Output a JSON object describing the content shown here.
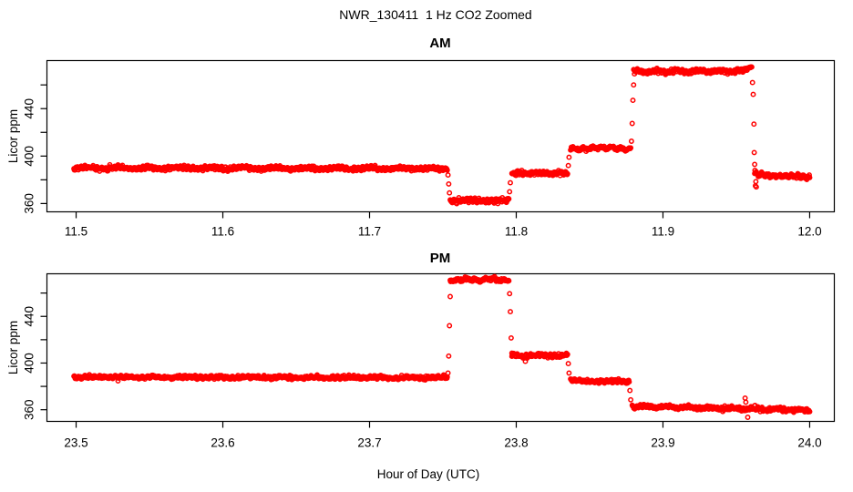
{
  "header": {
    "title": "NWR_130411  1 Hz CO2 Zoomed"
  },
  "axes": {
    "xlabel": "Hour of Day (UTC)",
    "ylabel": "Licor ppm"
  },
  "colors": {
    "points": "#FF0000",
    "axis": "#000000",
    "background": "#FFFFFF"
  },
  "marker": {
    "shape": "open-circle",
    "radius": 2.2,
    "stroke_width": 1.5
  },
  "chart_data": [
    {
      "type": "scatter",
      "panel": "AM",
      "title": "AM",
      "ylabel": "Licor ppm",
      "xlim": [
        11.4801,
        12.0168
      ],
      "ylim": [
        353,
        480.5
      ],
      "xticks": [
        11.5,
        11.6,
        11.7,
        11.8,
        11.9,
        12.0
      ],
      "xtick_labels": [
        "11.5",
        "11.6",
        "11.7",
        "11.8",
        "11.9",
        "12.0"
      ],
      "yticks_major": [
        360,
        400,
        440
      ],
      "ytick_labels_major": [
        "360",
        "400",
        "440"
      ],
      "yticks_minor": [
        380,
        420,
        460
      ],
      "grid": false,
      "sample_rate_hz": 1,
      "segments": [
        {
          "t0": 11.4985,
          "t1": 11.753,
          "v0": 390.0,
          "v1": 389.5
        },
        {
          "t0": 11.755,
          "t1": 11.795,
          "v0": 362.5,
          "v1": 362.5
        },
        {
          "t0": 11.797,
          "t1": 11.835,
          "v0": 385.5,
          "v1": 385.5
        },
        {
          "t0": 11.837,
          "t1": 11.878,
          "v0": 406.5,
          "v1": 406.5
        },
        {
          "t0": 11.88,
          "t1": 11.955,
          "v0": 471.5,
          "v1": 471.5
        },
        {
          "t0": 11.955,
          "t1": 11.9605,
          "v0": 472.0,
          "v1": 475.0
        },
        {
          "t0": 11.9625,
          "t1": 12.0,
          "v0": 384.5,
          "v1": 382.0
        }
      ],
      "transition_points": [
        [
          11.7535,
          384.0
        ],
        [
          11.754,
          376.5
        ],
        [
          11.7545,
          369.0
        ],
        [
          11.7955,
          370.0
        ],
        [
          11.796,
          377.5
        ],
        [
          11.8355,
          392.0
        ],
        [
          11.836,
          399.0
        ],
        [
          11.8785,
          412.5
        ],
        [
          11.879,
          427.5
        ],
        [
          11.8795,
          447.0
        ],
        [
          11.88,
          460.0
        ],
        [
          11.961,
          462.0
        ],
        [
          11.9615,
          452.0
        ],
        [
          11.962,
          427.0
        ],
        [
          11.9622,
          403.0
        ],
        [
          11.9625,
          393.0
        ],
        [
          11.9627,
          388.0
        ],
        [
          11.963,
          375.0
        ],
        [
          11.9633,
          378.5
        ],
        [
          11.9636,
          374.0
        ]
      ]
    },
    {
      "type": "scatter",
      "panel": "PM",
      "title": "PM",
      "ylabel": "Licor ppm",
      "xlim": [
        23.4801,
        24.0168
      ],
      "ylim": [
        350,
        476.5
      ],
      "xticks": [
        23.5,
        23.6,
        23.7,
        23.8,
        23.9,
        24.0
      ],
      "xtick_labels": [
        "23.5",
        "23.6",
        "23.7",
        "23.8",
        "23.9",
        "24.0"
      ],
      "yticks_major": [
        360,
        400,
        440
      ],
      "ytick_labels_major": [
        "360",
        "400",
        "440"
      ],
      "yticks_minor": [
        380,
        420,
        460
      ],
      "grid": false,
      "sample_rate_hz": 1,
      "segments": [
        {
          "t0": 23.4985,
          "t1": 23.753,
          "v0": 388.0,
          "v1": 387.5
        },
        {
          "t0": 23.755,
          "t1": 23.795,
          "v0": 471.5,
          "v1": 471.5
        },
        {
          "t0": 23.797,
          "t1": 23.835,
          "v0": 406.5,
          "v1": 406.5
        },
        {
          "t0": 23.837,
          "t1": 23.877,
          "v0": 385.0,
          "v1": 384.0
        },
        {
          "t0": 23.879,
          "t1": 24.0,
          "v0": 363.0,
          "v1": 359.5
        }
      ],
      "transition_points": [
        [
          23.7535,
          391.5
        ],
        [
          23.754,
          406.0
        ],
        [
          23.7545,
          432.0
        ],
        [
          23.755,
          457.0
        ],
        [
          23.7955,
          459.5
        ],
        [
          23.796,
          444.0
        ],
        [
          23.7965,
          421.5
        ],
        [
          23.797,
          408.5
        ],
        [
          23.8355,
          399.5
        ],
        [
          23.836,
          391.5
        ],
        [
          23.8775,
          376.5
        ],
        [
          23.878,
          368.5
        ],
        [
          23.956,
          370.0
        ],
        [
          23.9565,
          366.5
        ],
        [
          23.9578,
          353.5
        ]
      ]
    }
  ]
}
